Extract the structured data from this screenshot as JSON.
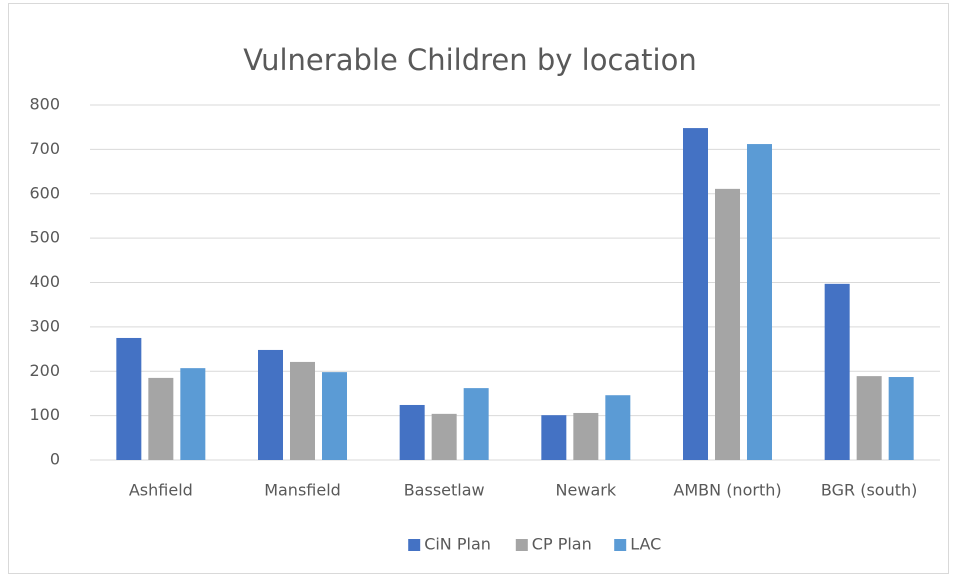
{
  "chart_data": {
    "type": "bar",
    "title": "Vulnerable Children by location",
    "categories": [
      "Ashfield",
      "Mansfield",
      "Bassetlaw",
      "Newark",
      "AMBN (north)",
      "BGR (south)"
    ],
    "series": [
      {
        "name": "CiN Plan",
        "color": "#4472c4",
        "values": [
          275,
          248,
          124,
          101,
          748,
          397
        ]
      },
      {
        "name": "CP Plan",
        "color": "#a5a5a5",
        "values": [
          185,
          221,
          104,
          106,
          611,
          189
        ]
      },
      {
        "name": "LAC",
        "color": "#5b9bd5",
        "values": [
          207,
          198,
          162,
          146,
          712,
          187
        ]
      }
    ],
    "ylim": [
      0,
      800
    ],
    "yticks": [
      0,
      100,
      200,
      300,
      400,
      500,
      600,
      700,
      800
    ],
    "grid": true,
    "legend": "bottom"
  }
}
